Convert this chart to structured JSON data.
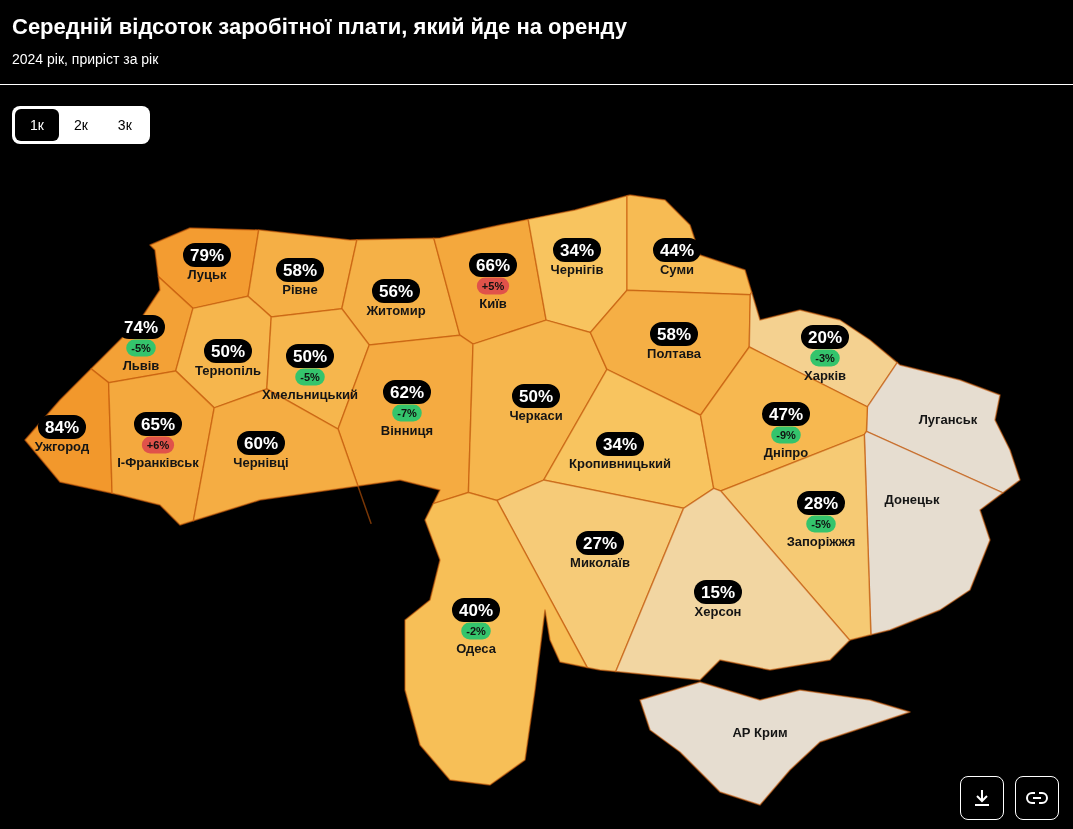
{
  "chart_data": {
    "type": "other",
    "title": "Середній відсоток заробітної плати, який йде на оренду",
    "subtitle": "2024 рік, приріст за рік",
    "categories": [
      "Луцьк",
      "Рівне",
      "Житомир",
      "Київ",
      "Чернігів",
      "Суми",
      "Львів",
      "Тернопіль",
      "Хмельницький",
      "Вінниця",
      "Черкаси",
      "Полтава",
      "Харків",
      "Луганськ",
      "Ужгород",
      "І-Франківськ",
      "Чернівці",
      "Кропивницький",
      "Дніпро",
      "Донецьк",
      "Запоріжжя",
      "Миколаїв",
      "Одеса",
      "Херсон",
      "АР Крим"
    ],
    "series": [
      {
        "values": [
          79,
          58,
          56,
          66,
          34,
          44,
          74,
          50,
          50,
          62,
          50,
          58,
          20,
          null,
          84,
          65,
          60,
          34,
          47,
          null,
          28,
          27,
          40,
          15,
          null
        ],
        "value_labels": [
          "79%",
          "58%",
          "56%",
          "66%",
          "34%",
          "44%",
          "74%",
          "50%",
          "50%",
          "62%",
          "50%",
          "58%",
          "20%",
          null,
          "84%",
          "65%",
          "60%",
          "34%",
          "47%",
          null,
          "28%",
          "27%",
          "40%",
          "15%",
          null
        ]
      },
      {
        "values": [
          null,
          null,
          null,
          5,
          null,
          null,
          -5,
          null,
          -5,
          -7,
          null,
          null,
          -3,
          null,
          null,
          6,
          null,
          null,
          -9,
          null,
          -5,
          null,
          -2,
          null,
          null
        ],
        "value_labels": [
          null,
          null,
          null,
          "+5%",
          null,
          null,
          "-5%",
          null,
          "-5%",
          "-7%",
          null,
          null,
          "-3%",
          null,
          null,
          "+6%",
          null,
          null,
          "-9%",
          null,
          "-5%",
          null,
          "-2%",
          null,
          null
        ],
        "colors": [
          null,
          null,
          null,
          "#e0524a",
          null,
          null,
          "#34c46c",
          null,
          "#34c46c",
          "#34c46c",
          null,
          null,
          "#34c46c",
          null,
          null,
          "#e0524a",
          null,
          null,
          "#34c46c",
          null,
          "#34c46c",
          null,
          "#34c46c",
          null,
          null
        ]
      }
    ],
    "annotations": [
      "1к",
      "2к",
      "3к"
    ]
  }
}
